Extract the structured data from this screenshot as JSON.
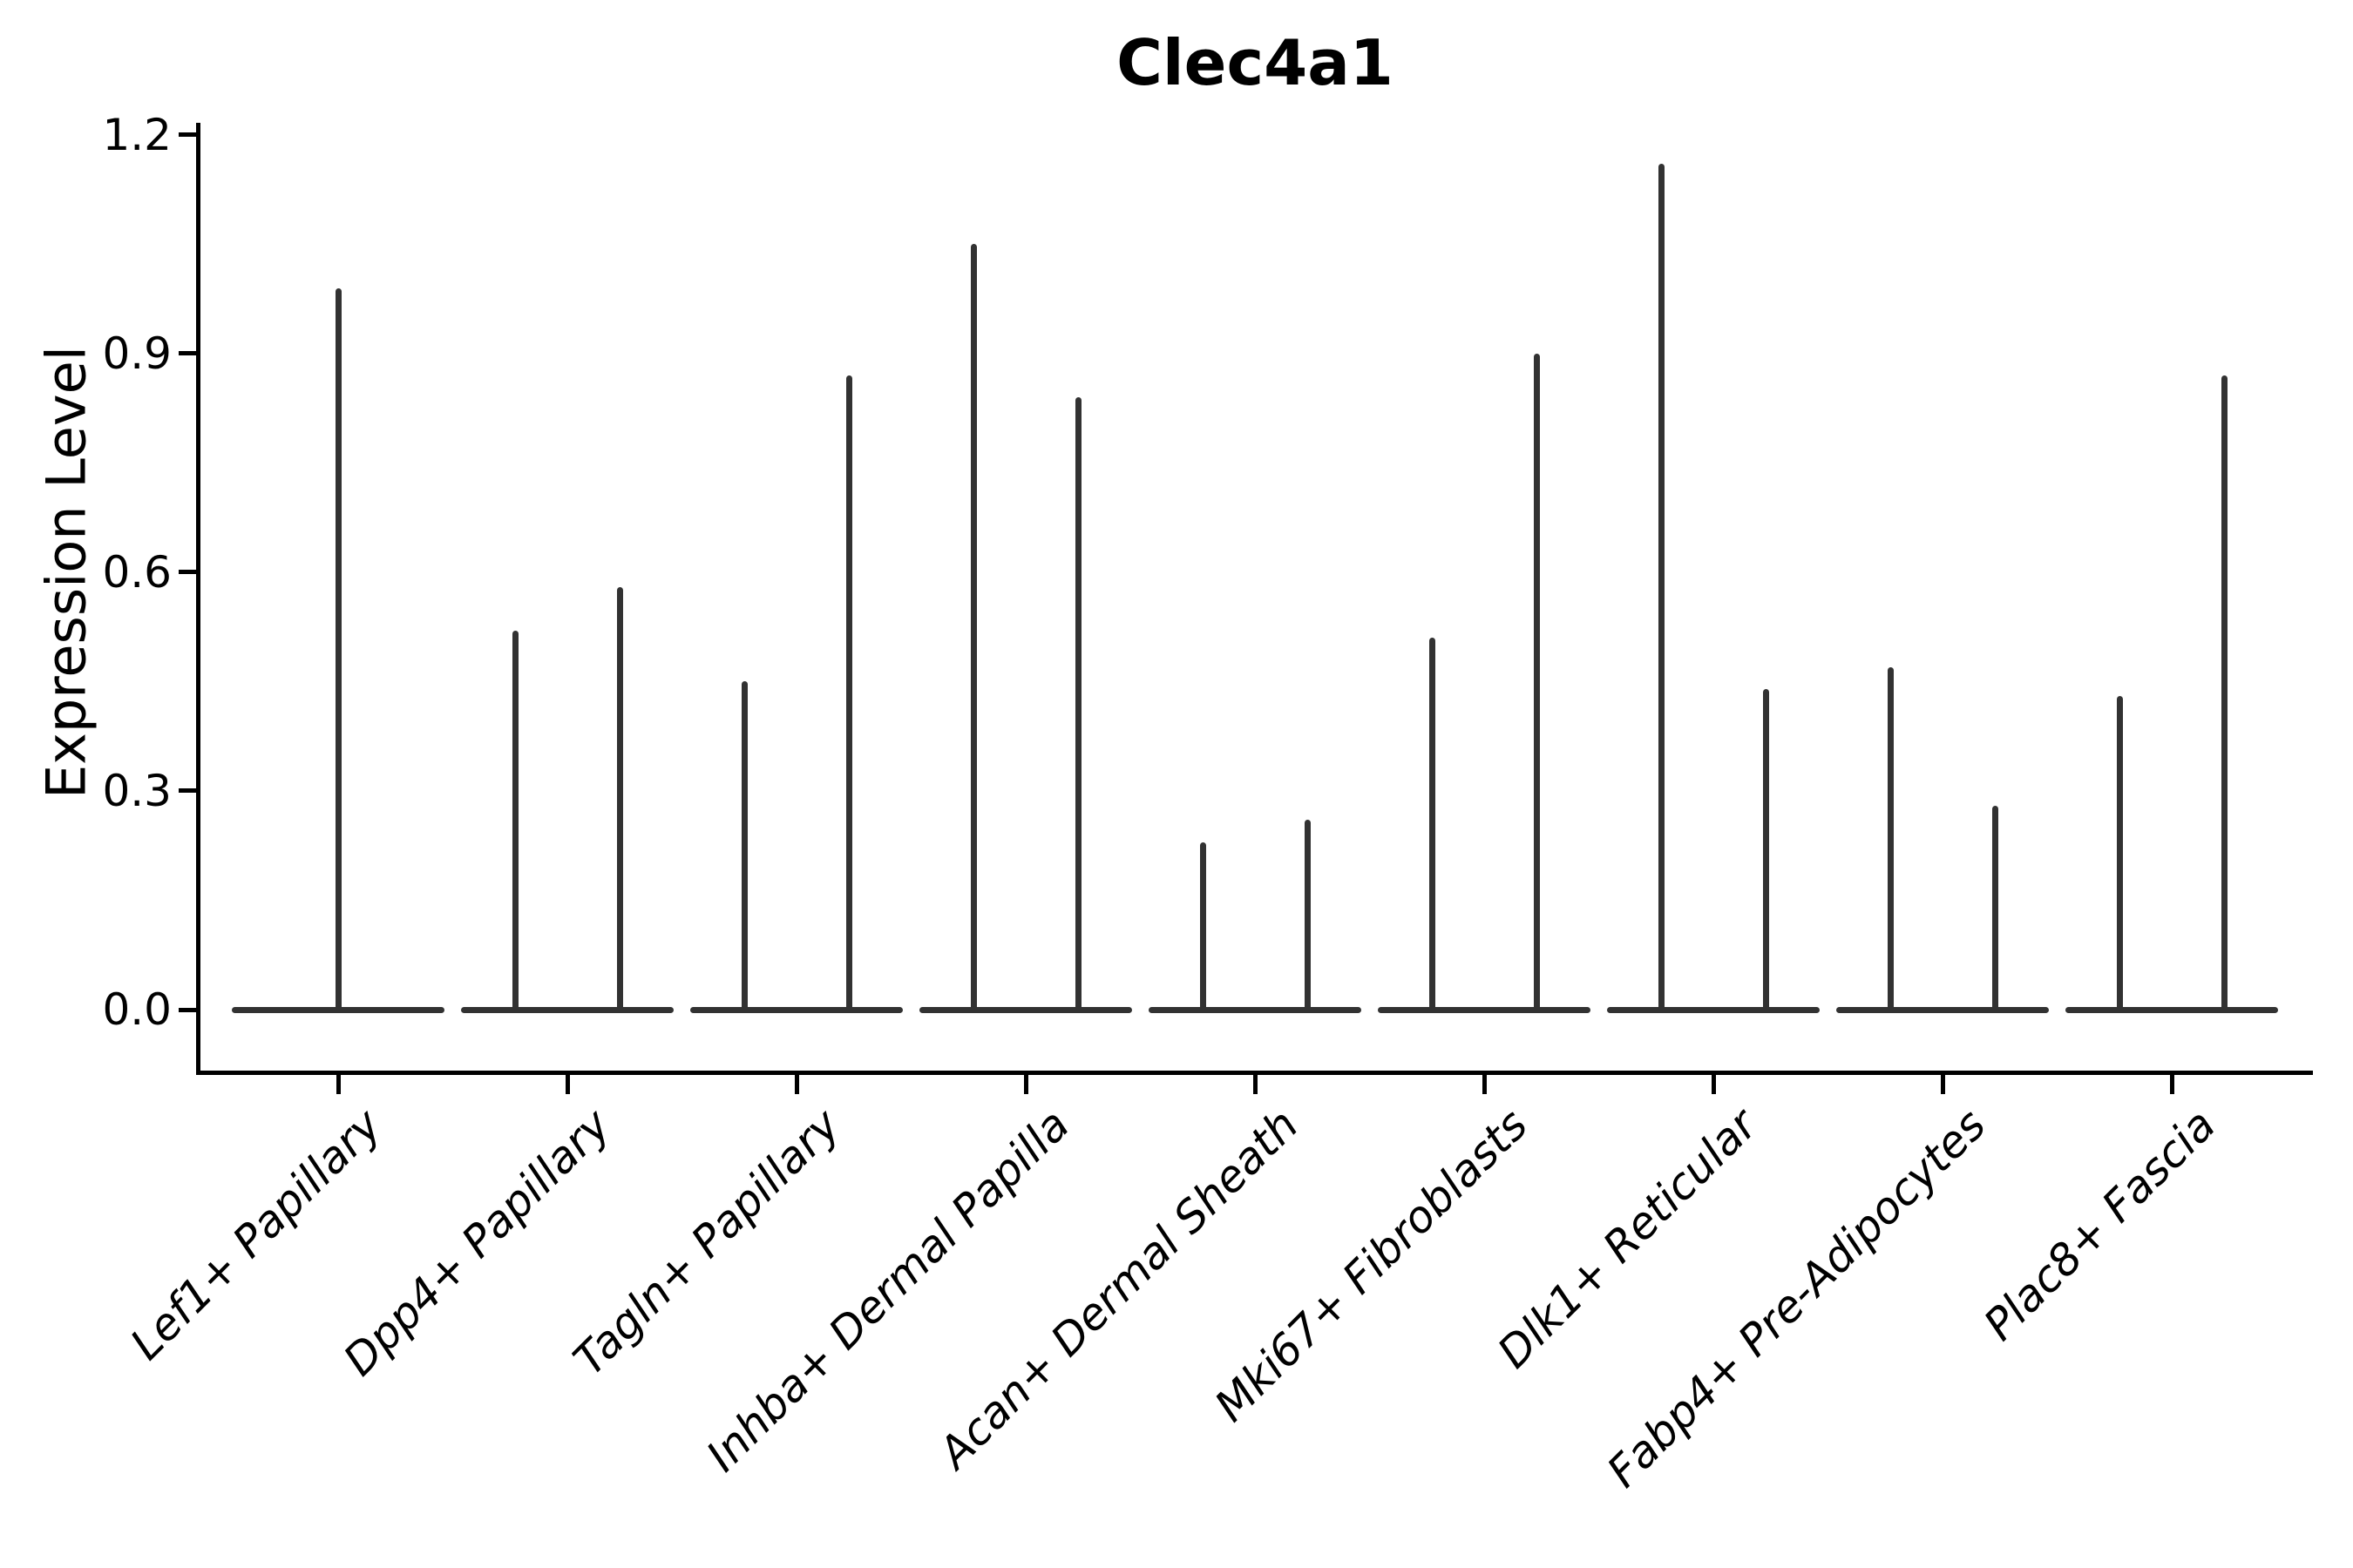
{
  "figure": {
    "background_color": "#ffffff",
    "violin_color": "#323232",
    "axis_color": "#000000",
    "text_color": "#000000"
  },
  "chart_data": {
    "type": "violin",
    "title": "Clec4a1",
    "xlabel": "",
    "ylabel": "Expression Level",
    "ylim": [
      0.0,
      1.2
    ],
    "ytick_labels": [
      "0.0",
      "0.3",
      "0.6",
      "0.9",
      "1.2"
    ],
    "ytick_values": [
      0.0,
      0.3,
      0.6,
      0.9,
      1.2
    ],
    "grid": false,
    "legend_position": "none",
    "x_tick_label_rotation_deg": 45,
    "categories": [
      "Lef1+ Papillary",
      "Dpp4+ Papillary",
      "Tagln+ Papillary",
      "Inhba+ Dermal Papilla",
      "Acan+ Dermal Sheath",
      "Mki67+ Fibroblasts",
      "Dlk1+ Reticular",
      "Fabp4+ Pre-Adipocytes",
      "Plac8+ Fascia"
    ],
    "violins": [
      {
        "category": "Lef1+ Papillary",
        "spike_max_expression": [
          0.99
        ]
      },
      {
        "category": "Dpp4+ Papillary",
        "spike_max_expression": [
          0.52,
          0.58
        ]
      },
      {
        "category": "Tagln+ Papillary",
        "spike_max_expression": [
          0.45,
          0.87
        ]
      },
      {
        "category": "Inhba+ Dermal Papilla",
        "spike_max_expression": [
          1.05,
          0.84
        ]
      },
      {
        "category": "Acan+ Dermal Sheath",
        "spike_max_expression": [
          0.23,
          0.26
        ]
      },
      {
        "category": "Mki67+ Fibroblasts",
        "spike_max_expression": [
          0.51,
          0.9
        ]
      },
      {
        "category": "Dlk1+ Reticular",
        "spike_max_expression": [
          1.16,
          0.44
        ]
      },
      {
        "category": "Fabp4+ Pre-Adipocytes",
        "spike_max_expression": [
          0.47,
          0.28
        ]
      },
      {
        "category": "Plac8+ Fascia",
        "spike_max_expression": [
          0.43,
          0.87
        ]
      }
    ],
    "violin_shape_note": "each violin is flat at 0 with a thin vertical density spike up to its max expression"
  }
}
